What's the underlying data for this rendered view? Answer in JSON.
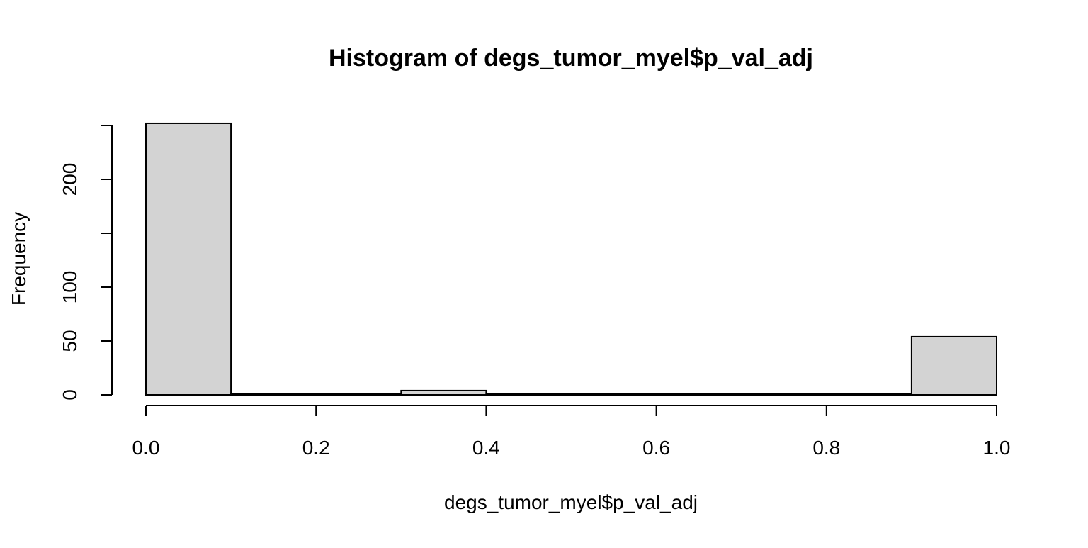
{
  "chart_data": {
    "type": "bar",
    "title": "Histogram of degs_tumor_myel$p_val_adj",
    "xlabel": "degs_tumor_myel$p_val_adj",
    "ylabel": "Frequency",
    "bins": [
      [
        0.0,
        0.1
      ],
      [
        0.1,
        0.2
      ],
      [
        0.2,
        0.3
      ],
      [
        0.3,
        0.4
      ],
      [
        0.4,
        0.5
      ],
      [
        0.5,
        0.6
      ],
      [
        0.6,
        0.7
      ],
      [
        0.7,
        0.8
      ],
      [
        0.8,
        0.9
      ],
      [
        0.9,
        1.0
      ]
    ],
    "values": [
      252,
      1,
      1,
      4,
      1,
      1,
      1,
      1,
      1,
      54
    ],
    "xlim": [
      0.0,
      1.0
    ],
    "ylim": [
      0,
      250
    ],
    "x_ticks": [
      0.0,
      0.2,
      0.4,
      0.6,
      0.8,
      1.0
    ],
    "x_tick_labels": [
      "0.0",
      "0.2",
      "0.4",
      "0.6",
      "0.8",
      "1.0"
    ],
    "y_ticks": [
      0,
      50,
      100,
      150,
      200,
      250
    ],
    "y_tick_labels": [
      "0",
      "50",
      "100",
      "",
      "200",
      ""
    ],
    "bar_fill": "#d3d3d3",
    "bar_stroke": "#000000",
    "grid": false,
    "legend": "none"
  }
}
